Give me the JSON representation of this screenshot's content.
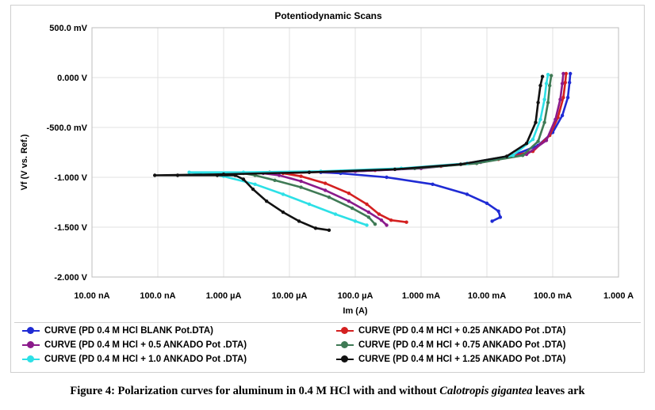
{
  "caption": {
    "prefix": "Figure 4: Polarization curves for aluminum in 0.4 M HCl with and without ",
    "italic": "Calotropis gigantea",
    "suffix": " leaves ark"
  },
  "chart_data": {
    "type": "line",
    "title": "Potentiodynamic Scans",
    "xlabel": "Im (A)",
    "ylabel": "Vf (V vs. Ref.)",
    "x_scale": "log",
    "xlim": [
      1e-08,
      1
    ],
    "ylim": [
      -2.0,
      0.5
    ],
    "x_ticks": [
      {
        "value": 1e-08,
        "label": "10.00 nA"
      },
      {
        "value": 1e-07,
        "label": "100.0 nA"
      },
      {
        "value": 1e-06,
        "label": "1.000 µA"
      },
      {
        "value": 1e-05,
        "label": "10.00 µA"
      },
      {
        "value": 0.0001,
        "label": "100.0 µA"
      },
      {
        "value": 0.001,
        "label": "1.000 mA"
      },
      {
        "value": 0.01,
        "label": "10.00 mA"
      },
      {
        "value": 0.1,
        "label": "100.0 mA"
      },
      {
        "value": 1,
        "label": "1.000 A"
      }
    ],
    "y_ticks": [
      {
        "value": 0.5,
        "label": "500.0 mV"
      },
      {
        "value": 0.0,
        "label": "0.000 V"
      },
      {
        "value": -0.5,
        "label": "-500.0 mV"
      },
      {
        "value": -1.0,
        "label": "-1.000 V"
      },
      {
        "value": -1.5,
        "label": "-1.500 V"
      },
      {
        "value": -2.0,
        "label": "-2.000 V"
      }
    ],
    "grid": true,
    "legend_position": "bottom",
    "series": [
      {
        "name": "CURVE (PD 0.4 M HCl BLANK  Pot.DTA)",
        "color": "#1f2bd4",
        "points": [
          [
            0.012,
            -1.44
          ],
          [
            0.016,
            -1.4
          ],
          [
            0.015,
            -1.34
          ],
          [
            0.01,
            -1.26
          ],
          [
            0.005,
            -1.17
          ],
          [
            0.0015,
            -1.07
          ],
          [
            0.0003,
            -1.0
          ],
          [
            6e-05,
            -0.96
          ],
          [
            3e-05,
            -0.95
          ],
          [
            0.0001,
            -0.94
          ],
          [
            0.0008,
            -0.91
          ],
          [
            0.005,
            -0.86
          ],
          [
            0.025,
            -0.78
          ],
          [
            0.06,
            -0.68
          ],
          [
            0.1,
            -0.55
          ],
          [
            0.14,
            -0.38
          ],
          [
            0.17,
            -0.2
          ],
          [
            0.18,
            -0.05
          ],
          [
            0.185,
            0.04
          ]
        ]
      },
      {
        "name": "CURVE (PD 0.4 M HCl + 0.25 ANKADO Pot .DTA)",
        "color": "#d42020",
        "points": [
          [
            0.0006,
            -1.45
          ],
          [
            0.00035,
            -1.43
          ],
          [
            0.00023,
            -1.37
          ],
          [
            0.00015,
            -1.27
          ],
          [
            8e-05,
            -1.16
          ],
          [
            3.5e-05,
            -1.06
          ],
          [
            1.5e-05,
            -0.99
          ],
          [
            8e-06,
            -0.96
          ],
          [
            2e-05,
            -0.95
          ],
          [
            0.0002,
            -0.93
          ],
          [
            0.002,
            -0.89
          ],
          [
            0.015,
            -0.82
          ],
          [
            0.05,
            -0.74
          ],
          [
            0.09,
            -0.58
          ],
          [
            0.12,
            -0.4
          ],
          [
            0.145,
            -0.2
          ],
          [
            0.155,
            -0.05
          ],
          [
            0.16,
            0.04
          ]
        ]
      },
      {
        "name": "CURVE (PD 0.4 M HCl + 0.5 ANKADO Pot .DTA)",
        "color": "#8b1a8b",
        "points": [
          [
            0.0003,
            -1.48
          ],
          [
            0.00025,
            -1.43
          ],
          [
            0.00016,
            -1.35
          ],
          [
            8e-05,
            -1.24
          ],
          [
            3.5e-05,
            -1.13
          ],
          [
            1.5e-05,
            -1.04
          ],
          [
            7e-06,
            -0.98
          ],
          [
            4e-06,
            -0.96
          ],
          [
            1e-05,
            -0.95
          ],
          [
            0.0001,
            -0.94
          ],
          [
            0.001,
            -0.91
          ],
          [
            0.008,
            -0.85
          ],
          [
            0.04,
            -0.77
          ],
          [
            0.08,
            -0.63
          ],
          [
            0.11,
            -0.42
          ],
          [
            0.13,
            -0.22
          ],
          [
            0.14,
            -0.06
          ],
          [
            0.145,
            0.04
          ]
        ]
      },
      {
        "name": "CURVE (PD 0.4 M HCl + 0.75 ANKADO Pot .DTA)",
        "color": "#3f7a55",
        "points": [
          [
            0.0002,
            -1.47
          ],
          [
            0.00016,
            -1.4
          ],
          [
            9e-05,
            -1.31
          ],
          [
            4e-05,
            -1.2
          ],
          [
            1.5e-05,
            -1.1
          ],
          [
            6e-06,
            -1.03
          ],
          [
            3e-06,
            -0.98
          ],
          [
            2e-06,
            -0.96
          ],
          [
            5e-06,
            -0.95
          ],
          [
            6e-05,
            -0.94
          ],
          [
            0.0008,
            -0.91
          ],
          [
            0.007,
            -0.86
          ],
          [
            0.035,
            -0.78
          ],
          [
            0.06,
            -0.64
          ],
          [
            0.075,
            -0.45
          ],
          [
            0.085,
            -0.25
          ],
          [
            0.09,
            -0.08
          ],
          [
            0.095,
            0.02
          ]
        ]
      },
      {
        "name": "CURVE (PD 0.4 M HCl + 1.0 ANKADO Pot .DTA)",
        "color": "#2de0e6",
        "points": [
          [
            0.00015,
            -1.48
          ],
          [
            0.0001,
            -1.44
          ],
          [
            5e-05,
            -1.37
          ],
          [
            2e-05,
            -1.27
          ],
          [
            8e-06,
            -1.17
          ],
          [
            3e-06,
            -1.07
          ],
          [
            1e-06,
            -0.99
          ],
          [
            5e-07,
            -0.96
          ],
          [
            3e-07,
            -0.95
          ],
          [
            2e-06,
            -0.95
          ],
          [
            3e-05,
            -0.94
          ],
          [
            0.0005,
            -0.91
          ],
          [
            0.005,
            -0.86
          ],
          [
            0.025,
            -0.78
          ],
          [
            0.05,
            -0.62
          ],
          [
            0.065,
            -0.42
          ],
          [
            0.075,
            -0.22
          ],
          [
            0.08,
            -0.06
          ],
          [
            0.085,
            0.03
          ]
        ]
      },
      {
        "name": "CURVE (PD 0.4 M HCl + 1.25 ANKADO Pot .DTA)",
        "color": "#111111",
        "points": [
          [
            4e-05,
            -1.53
          ],
          [
            2.5e-05,
            -1.51
          ],
          [
            1.4e-05,
            -1.44
          ],
          [
            8e-06,
            -1.35
          ],
          [
            4.5e-06,
            -1.24
          ],
          [
            2.8e-06,
            -1.12
          ],
          [
            2e-06,
            -1.02
          ],
          [
            1.5e-06,
            -0.98
          ],
          [
            8e-07,
            -0.98
          ],
          [
            2e-07,
            -0.98
          ],
          [
            9e-08,
            -0.98
          ],
          [
            1e-06,
            -0.97
          ],
          [
            2e-05,
            -0.95
          ],
          [
            0.0004,
            -0.92
          ],
          [
            0.004,
            -0.87
          ],
          [
            0.02,
            -0.79
          ],
          [
            0.04,
            -0.66
          ],
          [
            0.055,
            -0.45
          ],
          [
            0.06,
            -0.25
          ],
          [
            0.065,
            -0.08
          ],
          [
            0.07,
            0.01
          ]
        ]
      }
    ]
  }
}
